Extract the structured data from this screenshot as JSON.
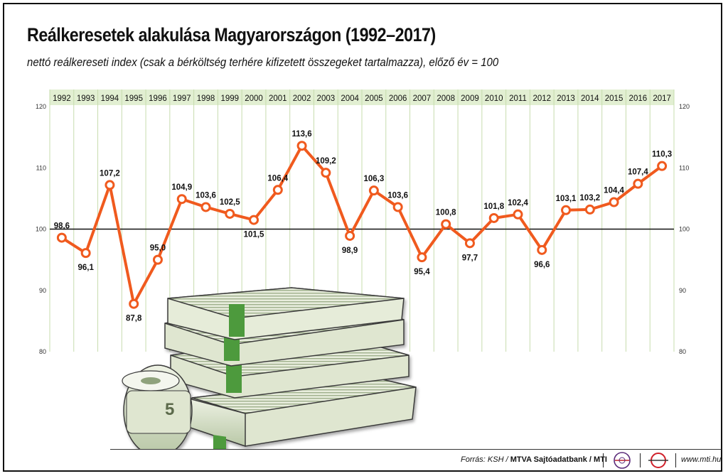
{
  "header": {
    "title": "Reálkeresetek alakulása Magyarországon (1992–2017)",
    "subtitle": "nettó reálkereseti index (csak a bérköltség terhére kifizetett összegeket tartalmazza), előző év = 100"
  },
  "footer": {
    "source_prefix": "Forrás: KSH /",
    "source_bold": "MTVA Sajtóadatbank / MTI",
    "url": "www.mti.hu"
  },
  "colors": {
    "line": "#f05a1e",
    "header_band": "#e2efd2",
    "grid": "#c7dcae",
    "baseline": "#111111"
  },
  "chart_data": {
    "type": "line",
    "x": [
      "1992",
      "1993",
      "1994",
      "1995",
      "1996",
      "1997",
      "1998",
      "1999",
      "2000",
      "2001",
      "2002",
      "2003",
      "2004",
      "2005",
      "2006",
      "2007",
      "2008",
      "2009",
      "2010",
      "2011",
      "2012",
      "2013",
      "2014",
      "2015",
      "2016",
      "2017"
    ],
    "series": [
      {
        "values": [
          98.6,
          96.1,
          107.2,
          87.8,
          95.0,
          104.9,
          103.6,
          102.5,
          101.5,
          106.4,
          113.6,
          109.2,
          98.9,
          106.3,
          103.6,
          95.4,
          100.8,
          97.7,
          101.8,
          102.4,
          96.6,
          103.1,
          103.2,
          104.4,
          107.4,
          110.3
        ],
        "labels": [
          "98,6",
          "96,1",
          "107,2",
          "87,8",
          "95,0",
          "104,9",
          "103,6",
          "102,5",
          "101,5",
          "106,4",
          "113,6",
          "109,2",
          "98,9",
          "106,3",
          "103,6",
          "95,4",
          "100,8",
          "97,7",
          "101,8",
          "102,4",
          "96,6",
          "103,1",
          "103,2",
          "104,4",
          "107,4",
          "110,3"
        ]
      }
    ],
    "yticks": [
      "80",
      "90",
      "100",
      "110",
      "120"
    ],
    "ylim": [
      80,
      120
    ],
    "baseline": 100,
    "grid": true,
    "legend": "none"
  }
}
